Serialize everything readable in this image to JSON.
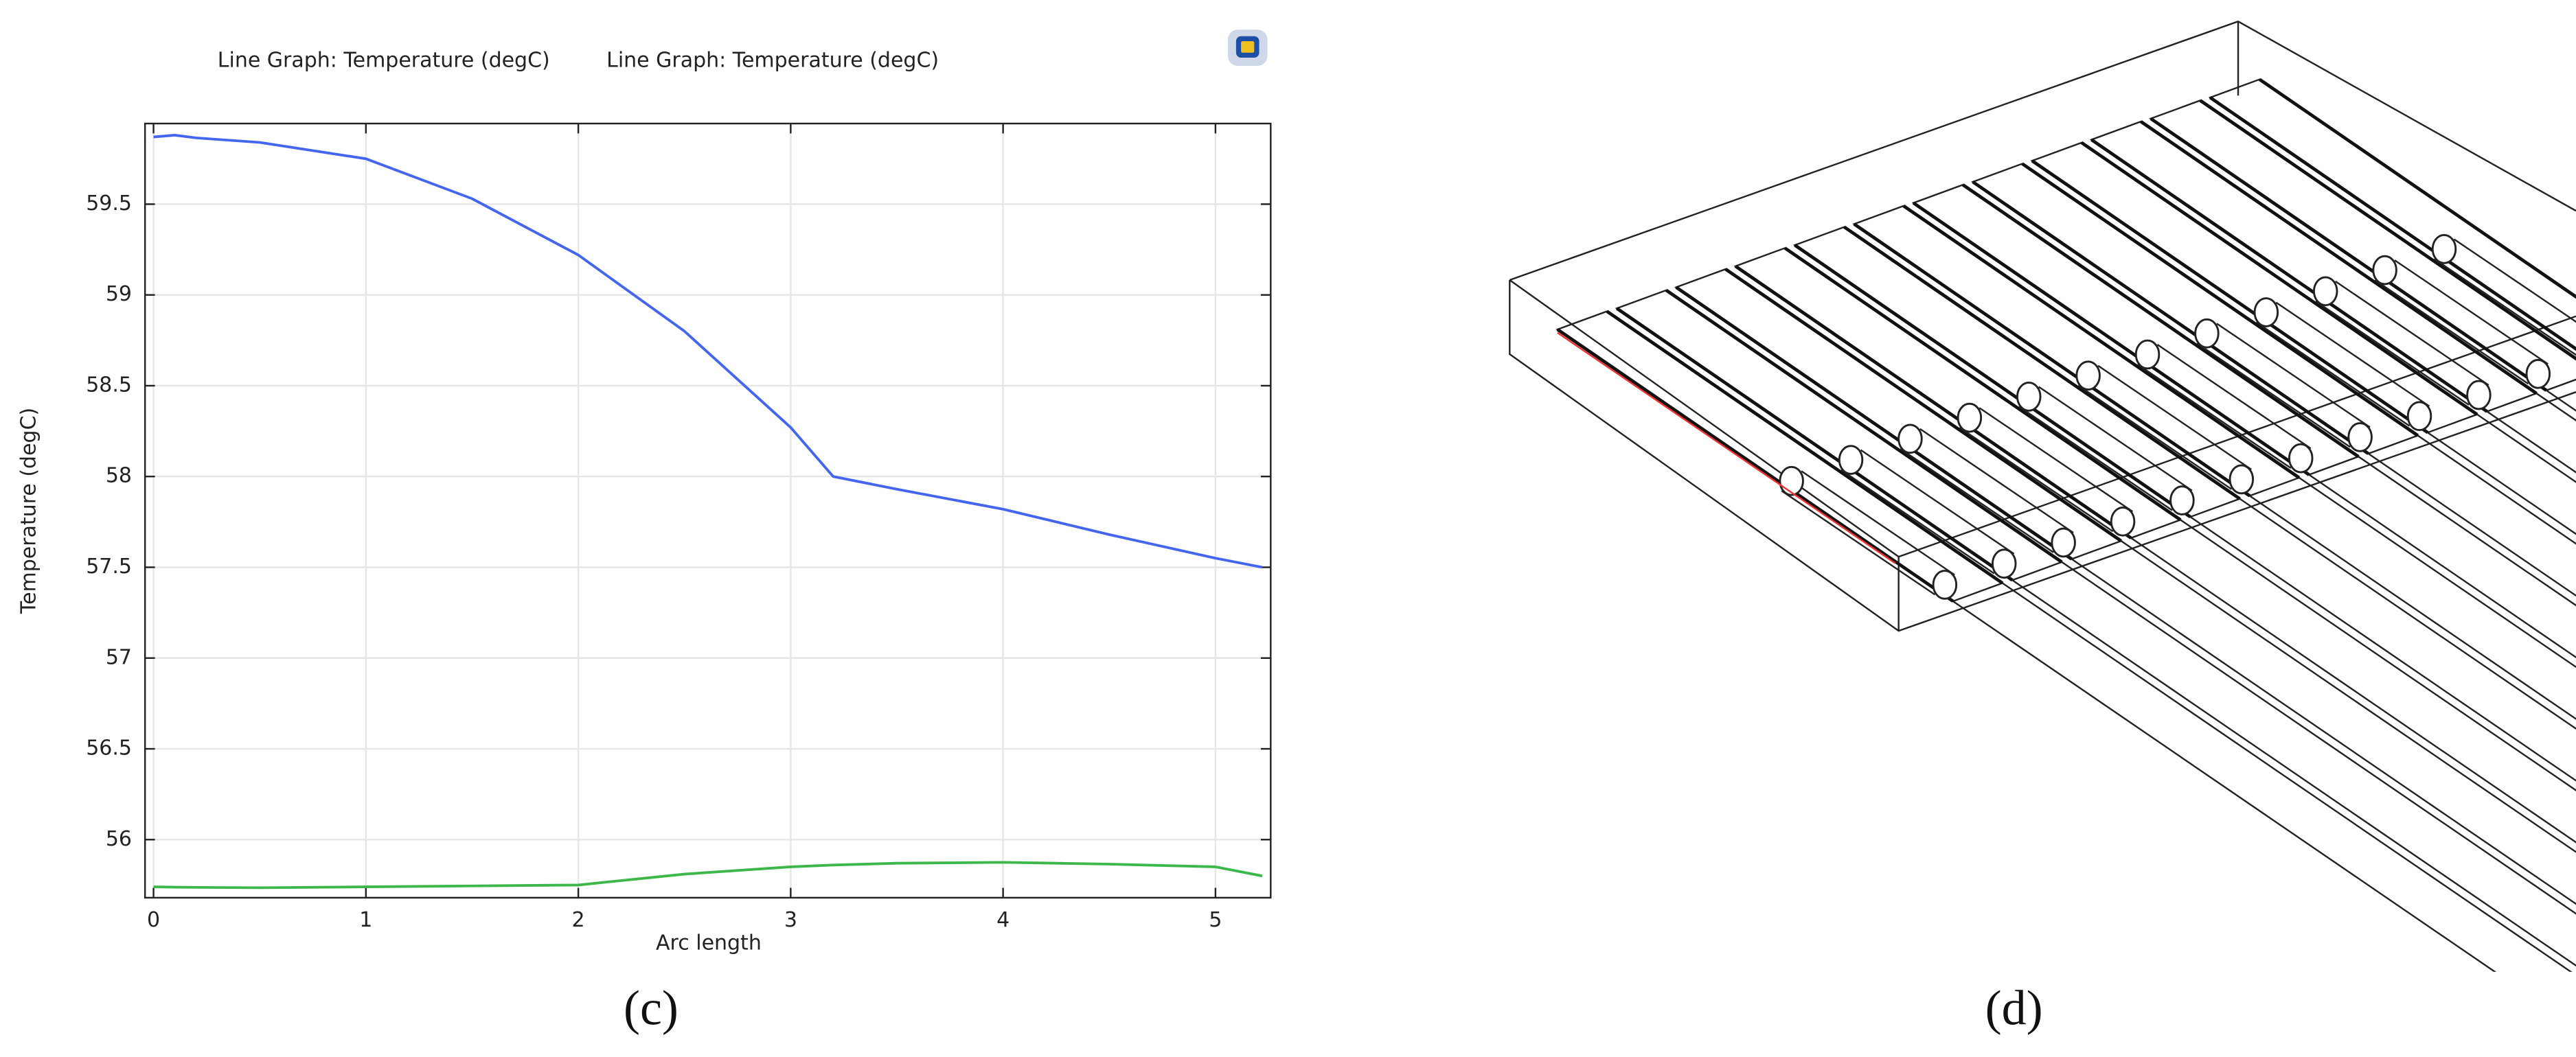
{
  "chart_data": {
    "type": "line",
    "series": [
      {
        "name": "Line Graph: Temperature (degC)",
        "color": "#4466ee",
        "values": [
          59.87,
          59.88,
          59.865,
          59.84,
          59.75,
          59.53,
          59.22,
          58.8,
          58.27,
          58.0,
          57.93,
          57.82,
          57.68,
          57.55,
          57.5
        ]
      },
      {
        "name": "Line Graph: Temperature (degC)",
        "color": "#3cb84a",
        "values": [
          55.74,
          55.738,
          55.737,
          55.735,
          55.74,
          55.745,
          55.75,
          55.81,
          55.85,
          55.86,
          55.87,
          55.875,
          55.865,
          55.85,
          55.8
        ]
      }
    ],
    "x": [
      0,
      0.1,
      0.2,
      0.5,
      1,
      1.5,
      2,
      2.5,
      3,
      3.2,
      3.5,
      4,
      4.5,
      5,
      5.22
    ],
    "x_label": "Arc length",
    "y_label": "Temperature (degC)",
    "xlim": [
      -0.04,
      5.26
    ],
    "xticks": [
      0,
      1,
      2,
      3,
      4,
      5
    ],
    "ylim": [
      55.68,
      59.944
    ],
    "yticks": [
      56,
      56.5,
      57,
      57.5,
      58,
      58.5,
      59,
      59.5
    ],
    "grid": true,
    "caption": "(c)"
  },
  "diagram": {
    "caption": "(d)"
  }
}
